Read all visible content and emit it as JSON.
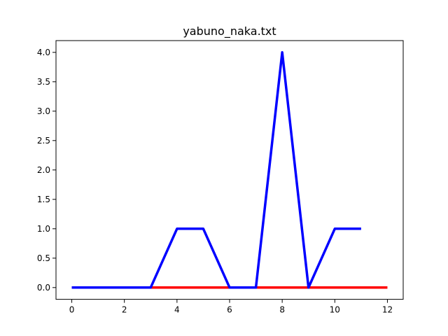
{
  "chart_data": {
    "type": "line",
    "title": "yabuno_naka.txt",
    "xlabel": "",
    "ylabel": "",
    "xlim": [
      -0.6,
      12.6
    ],
    "ylim": [
      -0.2,
      4.2
    ],
    "xticks": [
      0,
      2,
      4,
      6,
      8,
      10,
      12
    ],
    "xtick_labels": [
      "0",
      "2",
      "4",
      "6",
      "8",
      "10",
      "12"
    ],
    "yticks": [
      0,
      0.5,
      1,
      1.5,
      2,
      2.5,
      3,
      3.5,
      4
    ],
    "ytick_labels": [
      "0.0",
      "0.5",
      "1.0",
      "1.5",
      "2.0",
      "2.5",
      "3.0",
      "3.5",
      "4.0"
    ],
    "grid": false,
    "series": [
      {
        "color": "#ff0000",
        "x": [
          0,
          1,
          2,
          3,
          4,
          5,
          6,
          7,
          8,
          9,
          10,
          11,
          12
        ],
        "values": [
          0,
          0,
          0,
          0,
          0,
          0,
          0,
          0,
          0,
          0,
          0,
          0,
          0
        ]
      },
      {
        "color": "#0000ff",
        "x": [
          0,
          1,
          2,
          3,
          4,
          5,
          6,
          7,
          8,
          9,
          10,
          11
        ],
        "values": [
          0,
          0,
          0,
          0,
          1,
          1,
          0,
          0,
          4,
          0,
          1,
          1
        ]
      }
    ]
  }
}
